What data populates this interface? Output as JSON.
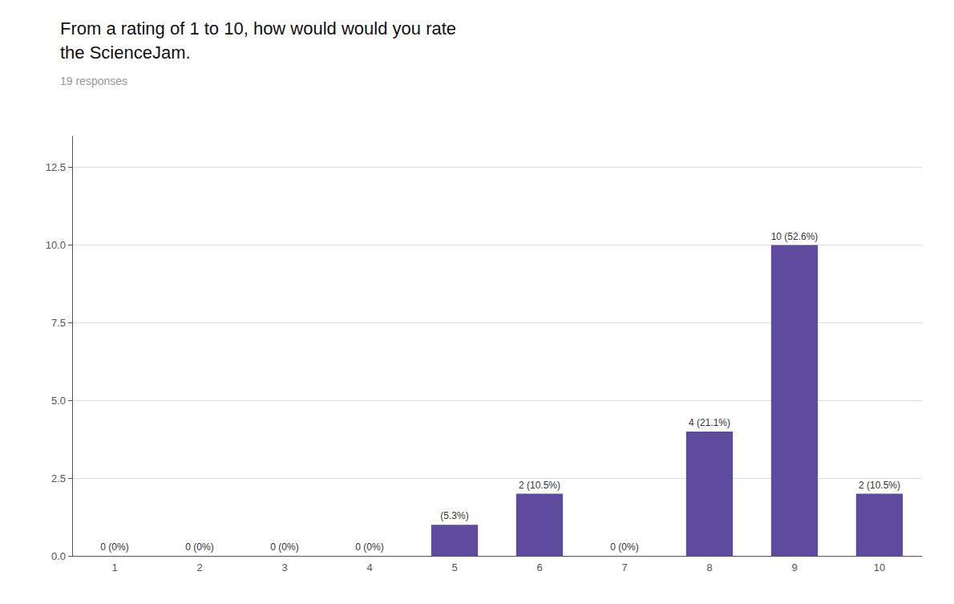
{
  "chart_data": {
    "type": "bar",
    "title": "From a rating of 1 to 10, how would would you rate\nthe ScienceJam.",
    "subtitle": "19 responses",
    "categories": [
      1,
      2,
      3,
      4,
      5,
      6,
      7,
      8,
      9,
      10
    ],
    "values": [
      0,
      0,
      0,
      0,
      1,
      2,
      0,
      4,
      10,
      2
    ],
    "value_labels": [
      "0 (0%)",
      "0 (0%)",
      "0 (0%)",
      "0 (0%)",
      "(5.3%)",
      "2 (10.5%)",
      "0 (0%)",
      "4 (21.1%)",
      "10 (52.6%)",
      "2 (10.5%)"
    ],
    "color": "#5e4b9e",
    "ylim": [
      0,
      13.5
    ],
    "yticks": [
      {
        "value": 0,
        "label": "0.0"
      },
      2.5,
      {
        "value": 5,
        "label": "5.0"
      },
      7.5,
      {
        "value": 10,
        "label": "10.0"
      },
      12.5
    ],
    "grid": true
  }
}
